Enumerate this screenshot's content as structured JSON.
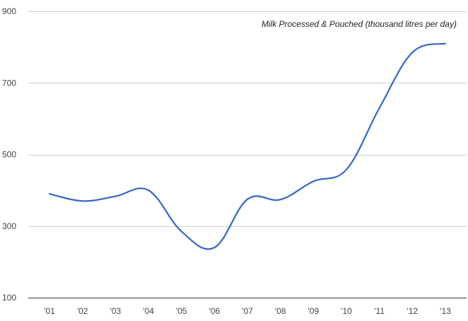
{
  "chart_data": {
    "type": "line",
    "title": "Milk Processed & Pouched (thousand litres per day)",
    "xlabel": "",
    "ylabel": "",
    "categories": [
      "'01",
      "'02",
      "'03",
      "'04",
      "'05",
      "'06",
      "'07",
      "'08",
      "'09",
      "'10",
      "'11",
      "'12",
      "'13"
    ],
    "series": [
      {
        "values": [
          390,
          370,
          383,
          400,
          285,
          240,
          375,
          374,
          425,
          458,
          630,
          785,
          810
        ]
      }
    ],
    "ylim": [
      100,
      900
    ],
    "yticks": [
      100,
      300,
      500,
      700,
      900
    ],
    "grid": true,
    "legend": "none",
    "colors": {
      "line": "#3366cc",
      "grid": "#cccccc",
      "baseline": "#333333"
    }
  }
}
